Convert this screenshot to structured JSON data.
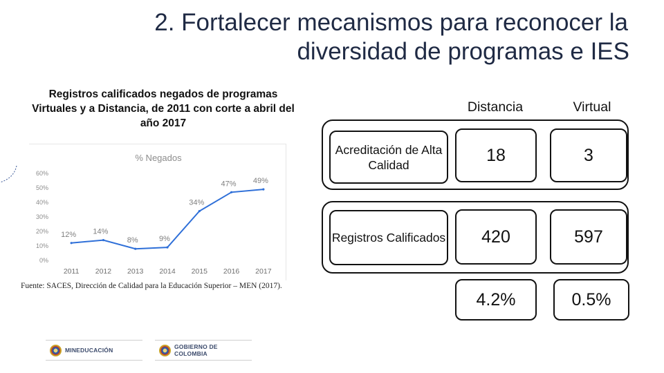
{
  "slide": {
    "title_line1": "2.  Fortalecer mecanismos para reconocer la",
    "title_line2": "diversidad de programas e IES",
    "chart_caption_line1": "Registros calificados negados de programas",
    "chart_caption_line2": "Virtuales y a Distancia, de 2011 con corte a abril del",
    "chart_caption_line3": "año 2017",
    "source": "Fuente: SACES, Dirección de Calidad para la Educación Superior – MEN (2017)."
  },
  "table": {
    "col_distancia": "Distancia",
    "col_virtual": "Virtual",
    "row_acreditacion_label": "Acreditación de Alta Calidad",
    "row_acreditacion_distancia": "18",
    "row_acreditacion_virtual": "3",
    "row_registros_label": "Registros Calificados",
    "row_registros_distancia": "420",
    "row_registros_virtual": "597",
    "pct_distancia": "4.2%",
    "pct_virtual": "0.5%"
  },
  "logos": {
    "mineducacion": "MINEDUCACIÓN",
    "gobierno": "GOBIERNO DE COLOMBIA"
  },
  "chart_data": {
    "type": "line",
    "title": "% Negados",
    "categories": [
      "2011",
      "2012",
      "2013",
      "2014",
      "2015",
      "2016",
      "2017"
    ],
    "values": [
      12,
      14,
      8,
      9,
      34,
      47,
      49
    ],
    "data_labels": [
      "12%",
      "14%",
      "8%",
      "9%",
      "34%",
      "47%",
      "49%"
    ],
    "y_ticks": [
      "0%",
      "10%",
      "20%",
      "30%",
      "40%",
      "50%",
      "60%"
    ],
    "ylim": [
      0,
      60
    ],
    "grid": false,
    "colors": {
      "line": "#2e6fd8",
      "axis_text": "#8c8c8c",
      "label_text": "#7f7f7f"
    }
  }
}
